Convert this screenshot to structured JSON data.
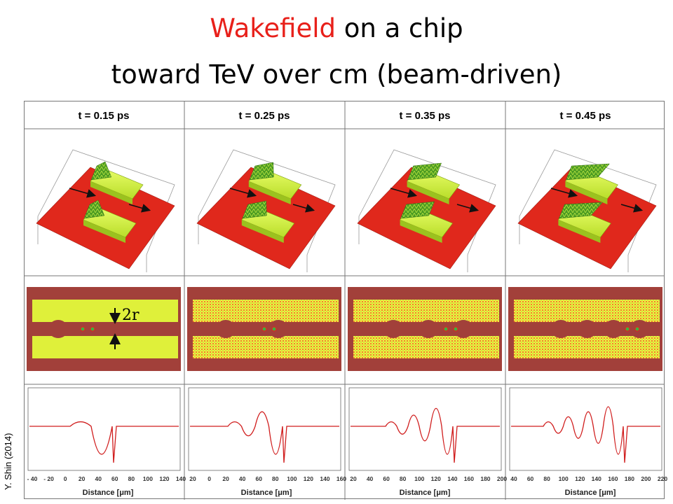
{
  "title": {
    "highlight": "Wakefield",
    "line1_rest": "on a chip",
    "line2": "toward TeV over cm (beam-driven)"
  },
  "credit": "Y. Shin (2014)",
  "colors": {
    "highlight": "#e8201a",
    "plasma": "#e0281c",
    "solid": "#d9f24a",
    "wake": "#3d8f1c",
    "trace": "#d01c1c"
  },
  "panels": [
    {
      "time": "t = 0.15 ps",
      "ticks": [
        "- 40",
        "- 20",
        "0",
        "20",
        "40",
        "60",
        "80",
        "100",
        "120",
        "140"
      ],
      "xlabel": "Distance [μm]"
    },
    {
      "time": "t = 0.25 ps",
      "ticks": [
        "20",
        "0",
        "20",
        "40",
        "60",
        "80",
        "100",
        "120",
        "140",
        "160"
      ],
      "xlabel": "Distance [μm]"
    },
    {
      "time": "t = 0.35 ps",
      "ticks": [
        "20",
        "40",
        "60",
        "80",
        "100",
        "120",
        "140",
        "160",
        "180",
        "200"
      ],
      "xlabel": "Distance [μm]"
    },
    {
      "time": "t = 0.45 ps",
      "ticks": [
        "40",
        "60",
        "80",
        "100",
        "120",
        "140",
        "160",
        "180",
        "200",
        "220"
      ],
      "xlabel": "Distance [μm]"
    }
  ],
  "annotation": "2r"
}
